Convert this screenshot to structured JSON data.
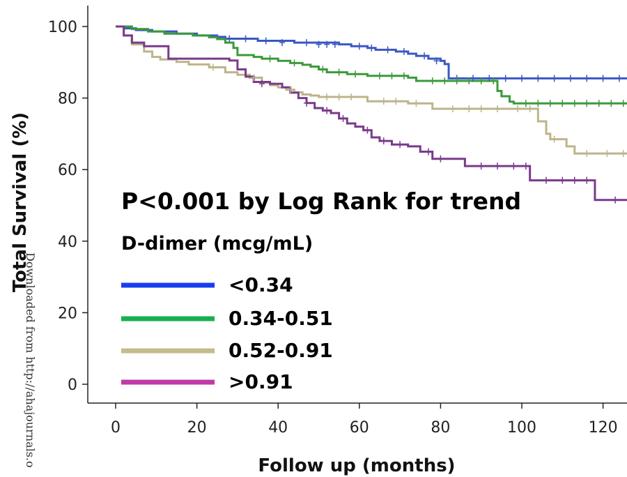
{
  "chart_data": {
    "type": "line",
    "step": true,
    "xlabel": "Follow up (months)",
    "ylabel": "Total Survival (%)",
    "xlim": [
      -8,
      126
    ],
    "ylim": [
      -5,
      105
    ],
    "xticks": [
      0,
      20,
      40,
      60,
      80,
      100,
      120
    ],
    "yticks": [
      0,
      20,
      40,
      60,
      80,
      100
    ],
    "grid": false,
    "annotations": {
      "main": "P<0.001 by Log Rank for trend",
      "sub": "D-dimer (mcg/mL)"
    },
    "legend_placement": "lower-center",
    "series": [
      {
        "name": "<0.34",
        "color": "#3a57c4",
        "legend_color": "#1a3cf0",
        "x": [
          0,
          2,
          5,
          9,
          15,
          20,
          25,
          27,
          35,
          44,
          55,
          58,
          62,
          64,
          69,
          72,
          74,
          77,
          80,
          81,
          82,
          126
        ],
        "y": [
          100,
          99.5,
          99,
          98.6,
          98,
          97.5,
          97.1,
          96.6,
          96,
          95.5,
          95,
          94.5,
          94,
          93.5,
          93,
          92.4,
          91.8,
          91,
          90.4,
          89.5,
          85.5,
          85.5
        ],
        "censored": [
          [
            28,
            96.6
          ],
          [
            32,
            96.6
          ],
          [
            37,
            96
          ],
          [
            41,
            95.5
          ],
          [
            47,
            95.5
          ],
          [
            50,
            95
          ],
          [
            52,
            95
          ],
          [
            54,
            95
          ],
          [
            60,
            94.5
          ],
          [
            63,
            94
          ],
          [
            67,
            93.5
          ],
          [
            71,
            93
          ],
          [
            76,
            91.8
          ],
          [
            79,
            90.4
          ],
          [
            84,
            85.5
          ],
          [
            88,
            85.5
          ],
          [
            92,
            85.5
          ],
          [
            96,
            85.5
          ],
          [
            100,
            85.5
          ],
          [
            104,
            85.5
          ],
          [
            108,
            85.5
          ],
          [
            112,
            85.5
          ],
          [
            116,
            85.5
          ],
          [
            120,
            85.5
          ],
          [
            124,
            85.5
          ]
        ]
      },
      {
        "name": "0.34-0.51",
        "color": "#3a9a3a",
        "legend_color": "#19b050",
        "x": [
          0,
          4,
          8,
          12,
          19,
          23,
          25,
          27,
          29,
          30,
          34,
          36,
          40,
          43,
          46,
          48,
          50,
          52,
          57,
          62,
          72,
          74,
          76,
          94,
          95,
          97,
          98,
          126
        ],
        "y": [
          100,
          99.3,
          98.6,
          98,
          97.5,
          97,
          96.5,
          95.5,
          94,
          92,
          91.5,
          91,
          90.4,
          89.8,
          89.3,
          88.8,
          88,
          87.2,
          86.7,
          86.2,
          85.7,
          84.8,
          84.8,
          82,
          80.5,
          79,
          78.5,
          78.5
        ],
        "censored": [
          [
            38,
            91
          ],
          [
            44,
            89.8
          ],
          [
            51,
            88
          ],
          [
            55,
            87.2
          ],
          [
            59,
            86.7
          ],
          [
            65,
            86.2
          ],
          [
            68,
            86.2
          ],
          [
            71,
            86.2
          ],
          [
            78,
            84.8
          ],
          [
            81,
            84.8
          ],
          [
            84,
            84.8
          ],
          [
            87,
            84.8
          ],
          [
            90,
            84.8
          ],
          [
            93,
            84.8
          ],
          [
            101,
            78.5
          ],
          [
            104,
            78.5
          ],
          [
            107,
            78.5
          ],
          [
            110,
            78.5
          ],
          [
            113,
            78.5
          ],
          [
            116,
            78.5
          ],
          [
            119,
            78.5
          ],
          [
            122,
            78.5
          ],
          [
            125,
            78.5
          ]
        ]
      },
      {
        "name": "0.52-0.91",
        "color": "#bdb48a",
        "legend_color": "#c4bc8c",
        "x": [
          0,
          2,
          4,
          7,
          9,
          11,
          15,
          18,
          23,
          27,
          30,
          33,
          36,
          38,
          40,
          42,
          44,
          46,
          48,
          50,
          62,
          72,
          78,
          97,
          104,
          106,
          107,
          111,
          113,
          126
        ],
        "y": [
          100,
          97.5,
          95,
          93,
          91.5,
          90.8,
          90.1,
          89.4,
          88.6,
          87.2,
          86.5,
          85.7,
          84.3,
          83.6,
          83,
          82.3,
          81.6,
          81,
          80.7,
          80.3,
          79.1,
          78.5,
          77,
          77,
          73.5,
          70,
          68.5,
          66.5,
          64.5,
          64.5
        ],
        "censored": [
          [
            24,
            88.6
          ],
          [
            34,
            85.7
          ],
          [
            43,
            82.3
          ],
          [
            52,
            80.3
          ],
          [
            55,
            80.3
          ],
          [
            58,
            80.3
          ],
          [
            66,
            79.1
          ],
          [
            69,
            79.1
          ],
          [
            74,
            78.5
          ],
          [
            83,
            77
          ],
          [
            87,
            77
          ],
          [
            90,
            77
          ],
          [
            94,
            77
          ],
          [
            99,
            77
          ],
          [
            102,
            77
          ],
          [
            108,
            68.5
          ],
          [
            116,
            64.5
          ],
          [
            121,
            64.5
          ],
          [
            125,
            64.5
          ]
        ]
      },
      {
        "name": ">0.91",
        "color": "#7a3a8a",
        "legend_color": "#c03aa8",
        "x": [
          0,
          2,
          4,
          7,
          13,
          28,
          30,
          32,
          34,
          38,
          41,
          43,
          45,
          47,
          49,
          51,
          53,
          55,
          57,
          59,
          61,
          63,
          65,
          68,
          72,
          75,
          78,
          86,
          102,
          104,
          118,
          126
        ],
        "y": [
          100,
          97.5,
          95.5,
          94.5,
          91,
          90.5,
          88,
          86,
          84.5,
          84,
          83,
          81.5,
          80,
          78.6,
          77.2,
          76.5,
          75.8,
          74.3,
          72.9,
          72,
          71,
          69,
          68,
          67,
          66.5,
          65,
          63,
          61,
          57,
          57,
          51.5,
          51.5
        ],
        "censored": [
          [
            36,
            84
          ],
          [
            47,
            78.6
          ],
          [
            52,
            76.5
          ],
          [
            56,
            74.3
          ],
          [
            62,
            71
          ],
          [
            66,
            68
          ],
          [
            70,
            67
          ],
          [
            77,
            65
          ],
          [
            80,
            63
          ],
          [
            90,
            61
          ],
          [
            94,
            61
          ],
          [
            98,
            61
          ],
          [
            101,
            61
          ],
          [
            106,
            57
          ],
          [
            110,
            57
          ],
          [
            113,
            57
          ],
          [
            116,
            57
          ],
          [
            123,
            51.5
          ]
        ]
      }
    ]
  },
  "watermark": "Downloaded from http://ahajournals.o"
}
